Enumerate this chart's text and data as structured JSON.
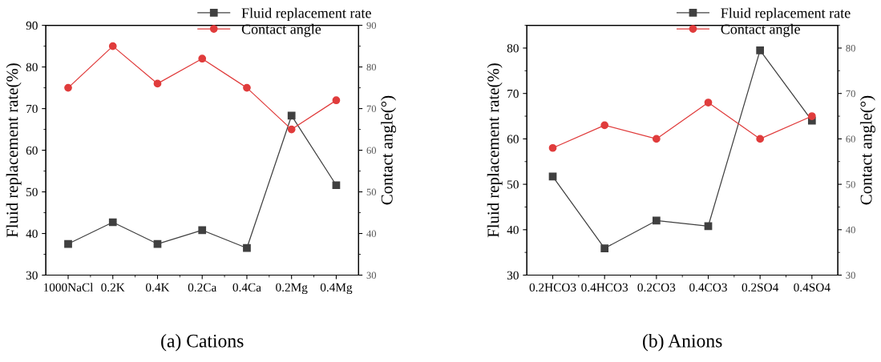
{
  "chart_data": [
    {
      "type": "line",
      "categories": [
        "1000NaCl",
        "0.2K",
        "0.4K",
        "0.2Ca",
        "0.4Ca",
        "0.2Mg",
        "0.4Mg"
      ],
      "ylabel": "Fluid replacement rate(%)",
      "y2label": "Contact angle(°)",
      "ylim": [
        30,
        90
      ],
      "yticks": [
        30,
        40,
        50,
        60,
        70,
        80,
        90
      ],
      "y2lim": [
        30,
        90
      ],
      "y2ticks": [
        30,
        40,
        50,
        60,
        70,
        80,
        90
      ],
      "legend": "top right",
      "annotations": [
        "(a) Cations"
      ],
      "series": [
        {
          "name": "Fluid replacement rate",
          "color": "#404040",
          "marker": "square",
          "values": [
            37.5,
            42.7,
            37.5,
            40.8,
            36.5,
            68.3,
            51.6
          ]
        },
        {
          "name": "Contact angle",
          "color": "#e03c3c",
          "marker": "circle",
          "values": [
            75,
            85,
            76,
            82,
            75,
            65,
            72
          ]
        }
      ]
    },
    {
      "type": "line",
      "categories": [
        "0.2HCO3",
        "0.4HCO3",
        "0.2CO3",
        "0.4CO3",
        "0.2SO4",
        "0.4SO4"
      ],
      "ylabel": "Fluid replacement rate(%)",
      "y2label": "Contact angle(°)",
      "ylim": [
        30,
        85
      ],
      "yticks": [
        30,
        40,
        50,
        60,
        70,
        80
      ],
      "y2lim": [
        30,
        85
      ],
      "y2ticks": [
        30,
        40,
        50,
        60,
        70,
        80
      ],
      "legend": "top right",
      "annotations": [
        "(b) Anions"
      ],
      "series": [
        {
          "name": "Fluid replacement rate",
          "color": "#404040",
          "marker": "square",
          "values": [
            51.7,
            35.9,
            42.0,
            40.8,
            79.5,
            64.0
          ]
        },
        {
          "name": "Contact angle",
          "color": "#e03c3c",
          "marker": "circle",
          "values": [
            58,
            63,
            60,
            68,
            60,
            65
          ]
        }
      ]
    }
  ]
}
